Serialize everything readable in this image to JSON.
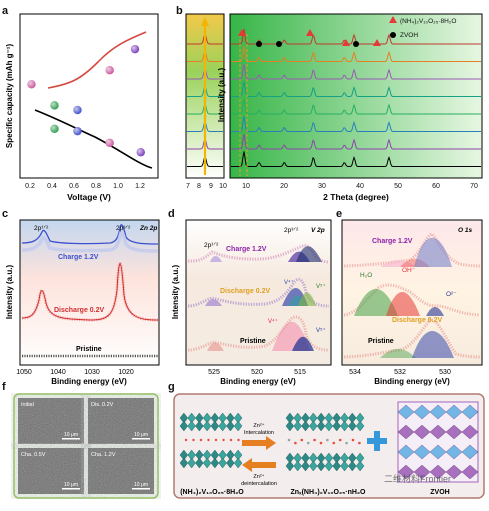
{
  "panel_letters": [
    "a",
    "b",
    "c",
    "d",
    "e",
    "f",
    "g"
  ],
  "panel_a": {
    "ylabel": "Specific capacity (mAh g⁻¹)",
    "xlabel": "Voltage (V)",
    "xticks": [
      "0.2",
      "0.4",
      "0.6",
      "0.8",
      "1.0",
      "1.2"
    ],
    "yticks": [
      "0",
      "10",
      "20",
      "30",
      "40",
      "50",
      "60"
    ]
  },
  "panel_b": {
    "ylabel": "Intensity (a.u.)",
    "xlabel": "2 Theta (degree)",
    "left_xticks": [
      "7",
      "8",
      "9",
      "10"
    ],
    "right_xticks": [
      "10",
      "20",
      "30",
      "40",
      "50",
      "60",
      "70"
    ],
    "legend": [
      "(NH₄)₂V₁₀O₂₅·8H₂O",
      "ZVOH"
    ]
  },
  "panel_c": {
    "labels": [
      "2p¹ᐟ²",
      "2p³ᐟ²",
      "Zn 2p",
      "Charge 1.2V",
      "Discharge 0.2V",
      "Pristine"
    ],
    "ylabel": "Intensity (a.u.)",
    "xlabel": "Binding energy (eV)",
    "xticks": [
      "1050",
      "1040",
      "1030",
      "1020"
    ]
  },
  "panel_d": {
    "labels": [
      "2p³ᐟ²",
      "V 2p",
      "2p¹ᐟ²",
      "Charge 1.2V",
      "Discharge 0.2V",
      "V⁴⁺",
      "V⁵⁺",
      "V⁴⁺",
      "V⁵⁺",
      "Pristine"
    ],
    "ylabel": "Intensity (a.u.)",
    "xlabel": "Binding energy (eV)",
    "xticks": [
      "525",
      "520",
      "515"
    ]
  },
  "panel_e": {
    "labels": [
      "O 1s",
      "Charge 1.2V",
      "H₂O",
      "OH⁻",
      "O²⁻",
      "Discharge 0.2V",
      "Pristine"
    ],
    "xlabel": "Binding energy (eV)",
    "xticks": [
      "534",
      "532",
      "530"
    ]
  },
  "panel_f": {
    "images": [
      {
        "label": "Initial",
        "scale": "10 μm"
      },
      {
        "label": "Dis. 0.2V",
        "scale": "10 μm"
      },
      {
        "label": "Cha. 0.5V",
        "scale": "10 μm"
      },
      {
        "label": "Cha. 1.2V",
        "scale": "10 μm"
      }
    ]
  },
  "panel_g": {
    "arrow_top": [
      "Zn²⁺",
      "Intercalation"
    ],
    "arrow_bottom": [
      "Zn²⁺",
      "deintercalation"
    ],
    "left_label": "(NH₄)₂V₁₀O₂₅·8H₂O",
    "middle_label": "Znₓ(NH₄)₂V₁₀O₂₅·nH₂O",
    "right_label": "ZVOH",
    "watermark": "二维材料Frontier"
  },
  "chart_data": [
    {
      "panel": "a",
      "type": "scatter",
      "title": "",
      "xlabel": "Voltage (V)",
      "ylabel": "Specific capacity (mAh g⁻¹)",
      "xlim": [
        0.1,
        1.3
      ],
      "ylim": [
        0,
        70
      ],
      "series": [
        {
          "x": [
            0.2,
            0.4,
            0.6,
            0.88,
            1.15
          ],
          "y": [
            40,
            31,
            29,
            15,
            11
          ],
          "colors": [
            "#c8549a",
            "#2a9a4a",
            "#3a49c8",
            "#c8549a",
            "#7a3ab8"
          ]
        },
        {
          "x": [
            0.4,
            0.6,
            0.88,
            1.1
          ],
          "y": [
            21,
            20,
            46,
            55
          ],
          "colors": [
            "#2a9a4a",
            "#3a49c8",
            "#c8549a",
            "#7a3ab8"
          ]
        }
      ]
    },
    {
      "panel": "b",
      "type": "line",
      "xlabel": "2 Theta (degree)",
      "ylabel": "Intensity (a.u.)",
      "xlim": [
        5,
        70
      ],
      "series_colors": [
        "#c0392b",
        "#e67e22",
        "#9b59b6",
        "#16a085",
        "#27ae60",
        "#2980b9",
        "#8e44ad",
        "#000000"
      ],
      "peaks_nvo": [
        8.6,
        26.5,
        37.0,
        46.0
      ],
      "peaks_zvoh": [
        12.5,
        19.0,
        34.5
      ]
    }
  ]
}
